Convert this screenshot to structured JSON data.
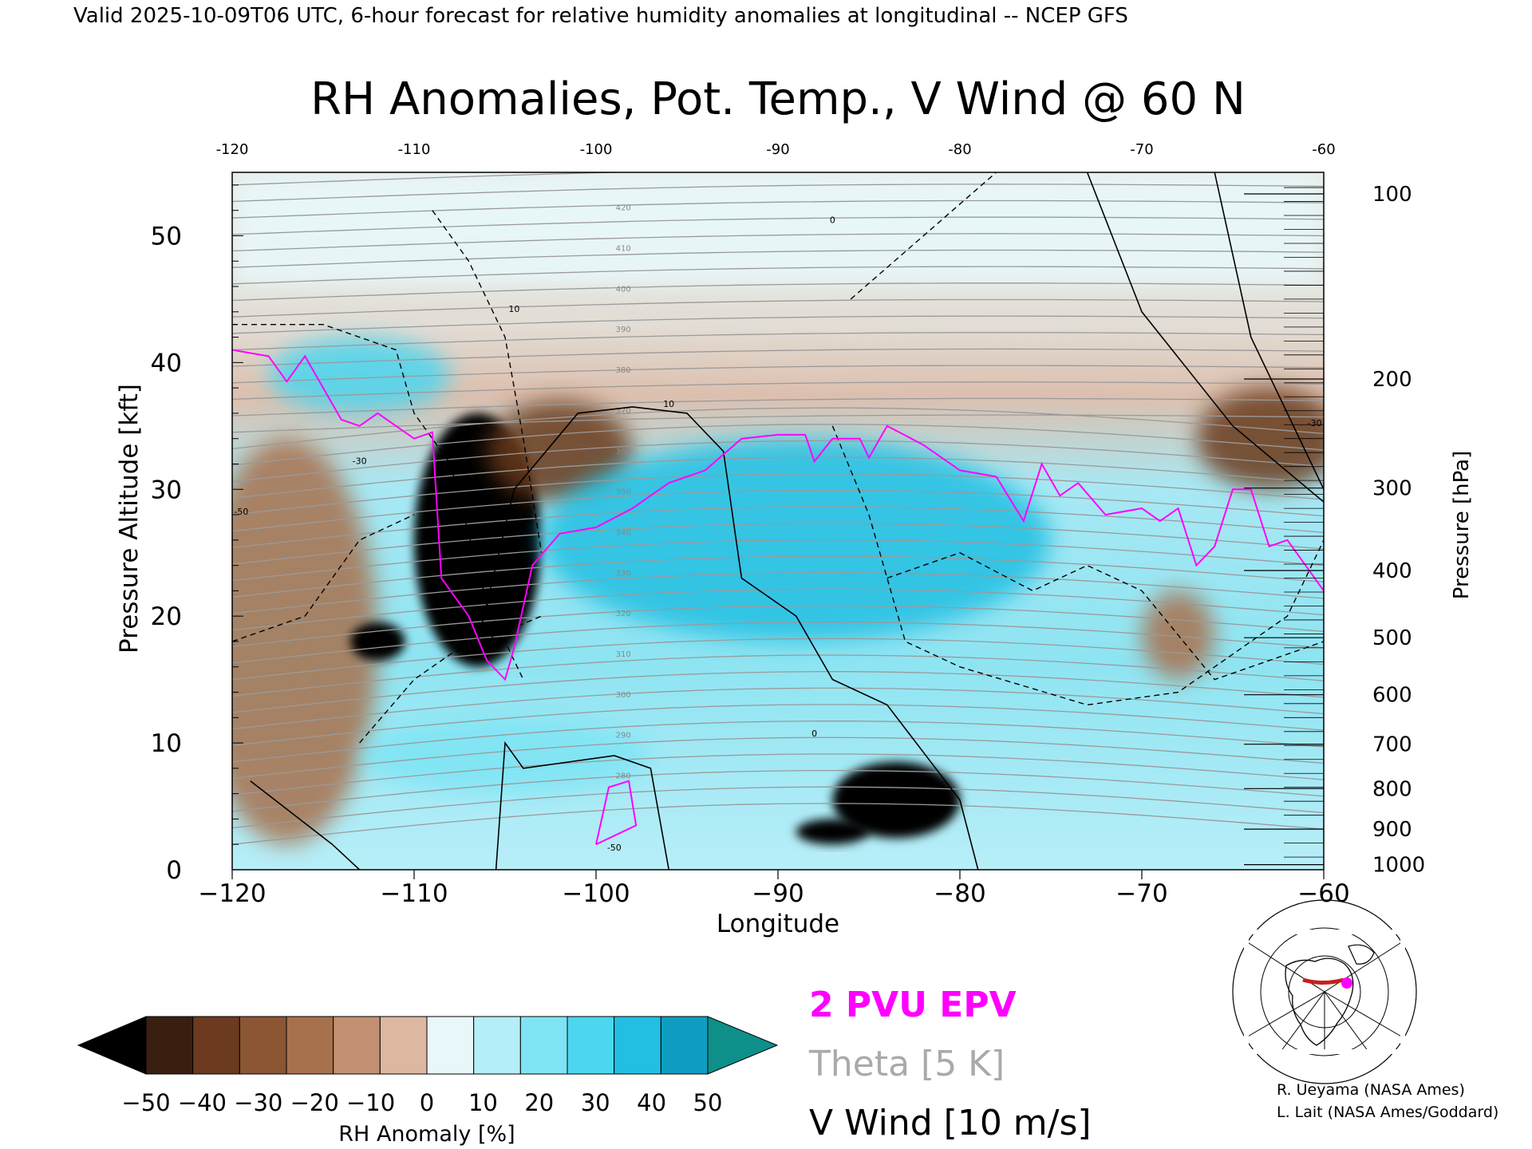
{
  "header": {
    "valid_line": "Valid 2025-10-09T06 UTC, 6-hour forecast for relative humidity anomalies at longitudinal -- NCEP GFS"
  },
  "chart_data": {
    "type": "heatmap",
    "title": "RH Anomalies, Pot. Temp., V Wind @ 60 N",
    "xlabel": "Longitude",
    "ylabel_left": "Pressure Altitude [kft]",
    "ylabel_right": "Pressure [hPa]",
    "xlim": [
      -120,
      -60
    ],
    "ylim": [
      0,
      55
    ],
    "x_ticks": [
      -120,
      -110,
      -100,
      -90,
      -80,
      -70,
      -60
    ],
    "x_tick_labels": [
      "−120",
      "−110",
      "−100",
      "−90",
      "−80",
      "−70",
      "−60"
    ],
    "x_top_tick_labels": [
      "-120",
      "-110",
      "-100",
      "-90",
      "-80",
      "-70",
      "-60"
    ],
    "y_ticks": [
      0,
      10,
      20,
      30,
      40,
      50
    ],
    "pressure_ticks": [
      {
        "label": "100",
        "kft": 53.3
      },
      {
        "label": "200",
        "kft": 38.7
      },
      {
        "label": "300",
        "kft": 30.1
      },
      {
        "label": "400",
        "kft": 23.6
      },
      {
        "label": "500",
        "kft": 18.3
      },
      {
        "label": "600",
        "kft": 13.8
      },
      {
        "label": "700",
        "kft": 9.9
      },
      {
        "label": "800",
        "kft": 6.4
      },
      {
        "label": "900",
        "kft": 3.2
      },
      {
        "label": "1000",
        "kft": 0.4
      }
    ],
    "colorbar": {
      "label": "RH Anomaly [%]",
      "tick_labels": [
        "−50",
        "−40",
        "−30",
        "−20",
        "−10",
        "0",
        "10",
        "20",
        "30",
        "40",
        "50"
      ],
      "colors": [
        "#3a1f10",
        "#6b3a1f",
        "#8c5533",
        "#a8714d",
        "#c29070",
        "#dcb8a0",
        "#e8f8fa",
        "#b4eef8",
        "#7ee4f4",
        "#4cd6f0",
        "#22bfe2",
        "#0f9ec2"
      ],
      "under_color": "#000000",
      "over_color": "#0e8f8a"
    },
    "legend": [
      {
        "label": "2 PVU EPV",
        "color": "#ff00ff"
      },
      {
        "label": "Theta [5 K]",
        "color": "#aaaaaa"
      },
      {
        "label": "V Wind [10 m/s]",
        "color": "#000000"
      }
    ],
    "theta_contour_labels": [
      "420",
      "410",
      "400",
      "390",
      "380",
      "370",
      "360",
      "350",
      "340",
      "330",
      "320",
      "310",
      "300",
      "290",
      "280"
    ],
    "wind_contour_labels": [
      "10",
      "0",
      "-50",
      "-30"
    ],
    "epv_2pvu_line": [
      [
        -120,
        41
      ],
      [
        -118,
        40.5
      ],
      [
        -117,
        38.5
      ],
      [
        -116,
        40.5
      ],
      [
        -115,
        38
      ],
      [
        -114,
        35.5
      ],
      [
        -113,
        35
      ],
      [
        -112,
        36
      ],
      [
        -111,
        35
      ],
      [
        -110,
        34
      ],
      [
        -109,
        34.5
      ],
      [
        -108.5,
        23
      ],
      [
        -107,
        20
      ],
      [
        -106,
        16.5
      ],
      [
        -105,
        15
      ],
      [
        -104.5,
        17.5
      ],
      [
        -103.5,
        24
      ],
      [
        -102,
        26.5
      ],
      [
        -100,
        27
      ],
      [
        -98,
        28.5
      ],
      [
        -96,
        30.5
      ],
      [
        -94,
        31.5
      ],
      [
        -92,
        34
      ],
      [
        -90,
        34.3
      ],
      [
        -88.5,
        34.3
      ],
      [
        -88,
        32.2
      ],
      [
        -87,
        34
      ],
      [
        -85.5,
        34
      ],
      [
        -85,
        32.5
      ],
      [
        -84,
        35
      ],
      [
        -82,
        33.5
      ],
      [
        -80,
        31.5
      ],
      [
        -78,
        31
      ],
      [
        -76.5,
        27.5
      ],
      [
        -75.5,
        32
      ],
      [
        -74.5,
        29.5
      ],
      [
        -73.5,
        30.5
      ],
      [
        -72,
        28
      ],
      [
        -70,
        28.5
      ],
      [
        -69,
        27.5
      ],
      [
        -68,
        28.5
      ],
      [
        -67,
        24
      ],
      [
        -66,
        25.5
      ],
      [
        -65,
        30
      ],
      [
        -64,
        30
      ],
      [
        -63,
        25.5
      ],
      [
        -62,
        26
      ],
      [
        -61,
        24
      ],
      [
        -60,
        22
      ]
    ],
    "rh_regions": [
      {
        "x": -120,
        "x2": -60,
        "y": 46,
        "y2": 55,
        "anom": 0
      },
      {
        "x": -117,
        "y": 18,
        "rx": 5,
        "ry": 16,
        "anom": -20
      },
      {
        "x": -106.5,
        "y": 26,
        "rx": 3.5,
        "ry": 10,
        "anom": -60
      },
      {
        "x": -112,
        "y": 18,
        "rx": 1.5,
        "ry": 1.5,
        "anom": -60
      },
      {
        "x": -102,
        "y": 33,
        "rx": 4,
        "ry": 4,
        "anom": -40
      },
      {
        "x": -83.5,
        "y": 5.5,
        "rx": 3.5,
        "ry": 3,
        "anom": -60
      },
      {
        "x": -87,
        "y": 3,
        "rx": 2,
        "ry": 1,
        "anom": -60
      },
      {
        "x": -63,
        "y": 34,
        "rx": 4,
        "ry": 4,
        "anom": -40
      },
      {
        "x": -68,
        "y": 18.5,
        "rx": 2,
        "ry": 3.5,
        "anom": -20
      },
      {
        "x": -89,
        "y": 26,
        "rx": 14,
        "ry": 8,
        "anom": 40
      },
      {
        "x": -113,
        "y": 39,
        "rx": 5,
        "ry": 3,
        "anom": 30
      },
      {
        "x": -105,
        "y": 9,
        "rx": 8,
        "ry": 3,
        "anom": 20
      }
    ]
  }
}
